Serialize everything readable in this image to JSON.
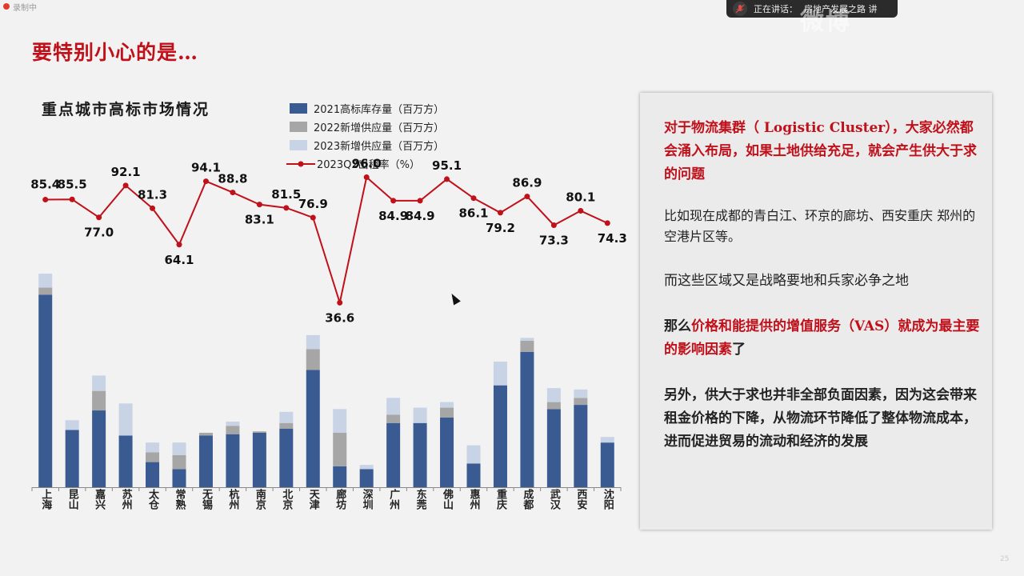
{
  "recording": {
    "label": "录制中"
  },
  "meeting": {
    "speaking_label": "正在讲话：",
    "speaker": "房地产发展之路 讲"
  },
  "watermark": "微博",
  "slide": {
    "title": "要特别小心的是…",
    "page_number": "25"
  },
  "colors": {
    "accent_red": "#c0101a",
    "bar_2021": "#3a5a92",
    "bar_2022": "#a6a6a6",
    "bar_2023": "#c8d3e6",
    "line": "#c0101a"
  },
  "chart_data": {
    "type": "bar",
    "title": "重点城市高标市场情况",
    "categories": [
      "上海",
      "昆山",
      "嘉兴",
      "苏州",
      "太仓",
      "常熟",
      "无锡",
      "杭州",
      "南京",
      "北京",
      "天津",
      "廊坊",
      "深圳",
      "广州",
      "东莞",
      "佛山",
      "惠州",
      "重庆",
      "成都",
      "武汉",
      "西安",
      "沈阳"
    ],
    "stacked": true,
    "ylim_bars": [
      0,
      18
    ],
    "ylim_line": [
      0,
      100
    ],
    "series": [
      {
        "name": "2021高标库存量（百万方）",
        "type": "bar",
        "values": [
          13.8,
          4.1,
          5.5,
          3.7,
          1.8,
          1.3,
          3.7,
          3.8,
          3.9,
          4.2,
          8.4,
          1.5,
          1.3,
          4.6,
          4.6,
          5.0,
          1.7,
          7.3,
          9.7,
          5.6,
          5.9,
          3.2
        ]
      },
      {
        "name": "2022新增供应量（百万方）",
        "type": "bar",
        "values": [
          0.5,
          0.0,
          1.4,
          0.0,
          0.7,
          1.0,
          0.2,
          0.6,
          0.1,
          0.4,
          1.5,
          2.4,
          0.0,
          0.6,
          0.0,
          0.7,
          0.0,
          0.0,
          0.8,
          0.5,
          0.5,
          0.0
        ]
      },
      {
        "name": "2023新增供应量（百万方）",
        "type": "bar",
        "values": [
          1.0,
          0.7,
          1.1,
          2.3,
          0.7,
          0.9,
          0.0,
          0.3,
          0.0,
          0.8,
          1.0,
          1.7,
          0.3,
          1.2,
          1.1,
          0.4,
          1.3,
          1.7,
          0.2,
          1.0,
          0.6,
          0.4
        ]
      },
      {
        "name": "2023Q2出租率（%）",
        "type": "line",
        "values": [
          85.4,
          85.5,
          77.0,
          92.1,
          81.3,
          64.1,
          94.1,
          88.8,
          83.1,
          81.5,
          76.9,
          36.6,
          96.0,
          84.9,
          84.9,
          95.1,
          86.1,
          79.2,
          86.9,
          73.3,
          80.1,
          74.3
        ]
      }
    ],
    "xlabel": "",
    "ylabel": "",
    "grid": false,
    "legend": "top"
  },
  "panel": {
    "p1": "对于物流集群（ Logistic Cluster），大家必然都会涌入布局，如果土地供给充足，就会产生供大于求的问题",
    "p2": "比如现在成都的青白江、环京的廊坊、西安重庆 郑州的空港片区等。",
    "p3": "而这些区域又是战略要地和兵家必争之地",
    "p4_prefix": "那么",
    "p4_highlight": "价格和能提供的增值服务（VAS）就成为最主要的影响因素",
    "p4_suffix": "了",
    "p5": "另外，供大于求也并非全部负面因素，因为这会带来租金价格的下降，从物流环节降低了整体物流成本，进而促进贸易的流动和经济的发展"
  }
}
